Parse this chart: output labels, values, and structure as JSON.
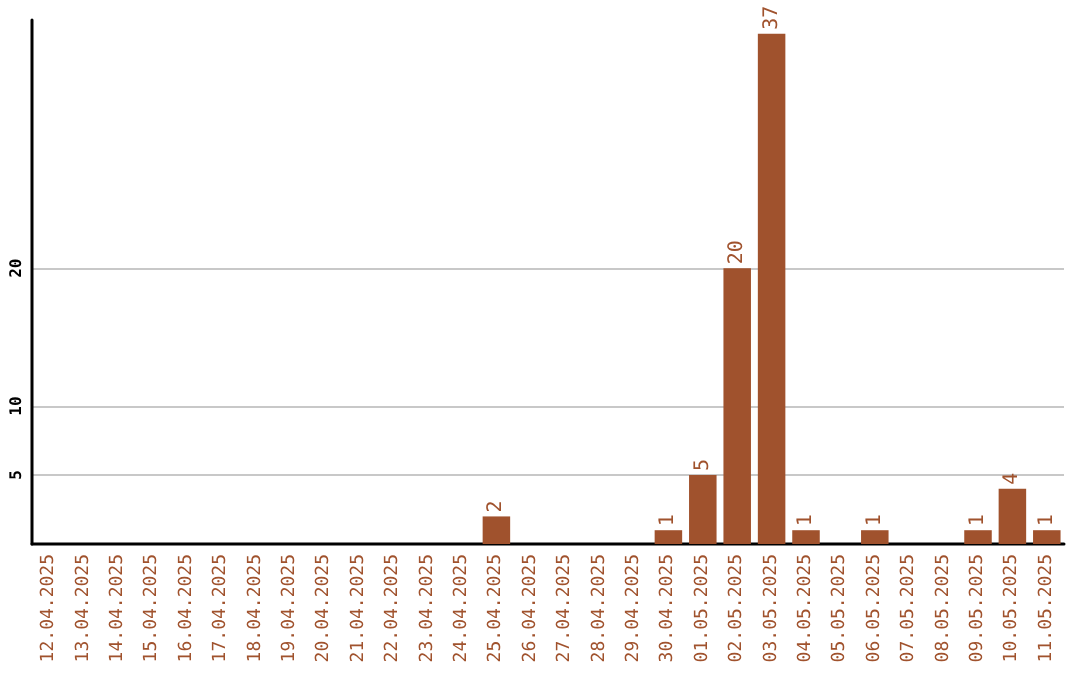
{
  "chart_data": {
    "type": "bar",
    "categories": [
      "12.04.2025",
      "13.04.2025",
      "14.04.2025",
      "15.04.2025",
      "16.04.2025",
      "17.04.2025",
      "18.04.2025",
      "19.04.2025",
      "20.04.2025",
      "21.04.2025",
      "22.04.2025",
      "23.04.2025",
      "24.04.2025",
      "25.04.2025",
      "26.04.2025",
      "27.04.2025",
      "28.04.2025",
      "29.04.2025",
      "30.04.2025",
      "01.05.2025",
      "02.05.2025",
      "03.05.2025",
      "04.05.2025",
      "05.05.2025",
      "06.05.2025",
      "07.05.2025",
      "08.05.2025",
      "09.05.2025",
      "10.05.2025",
      "11.05.2025"
    ],
    "values": [
      0,
      0,
      0,
      0,
      0,
      0,
      0,
      0,
      0,
      0,
      0,
      0,
      0,
      2,
      0,
      0,
      0,
      0,
      1,
      5,
      20,
      37,
      1,
      0,
      1,
      0,
      0,
      1,
      4,
      1
    ],
    "value_labels": [
      null,
      null,
      null,
      null,
      null,
      null,
      null,
      null,
      null,
      null,
      null,
      null,
      null,
      "2",
      null,
      null,
      null,
      null,
      "1",
      "5",
      "20",
      "37",
      "1",
      null,
      "1",
      null,
      null,
      "1",
      "4",
      "1"
    ],
    "color": "#a0522d",
    "ylim": [
      0,
      38
    ],
    "yticks": [
      5,
      10,
      20
    ],
    "grid": "y"
  }
}
